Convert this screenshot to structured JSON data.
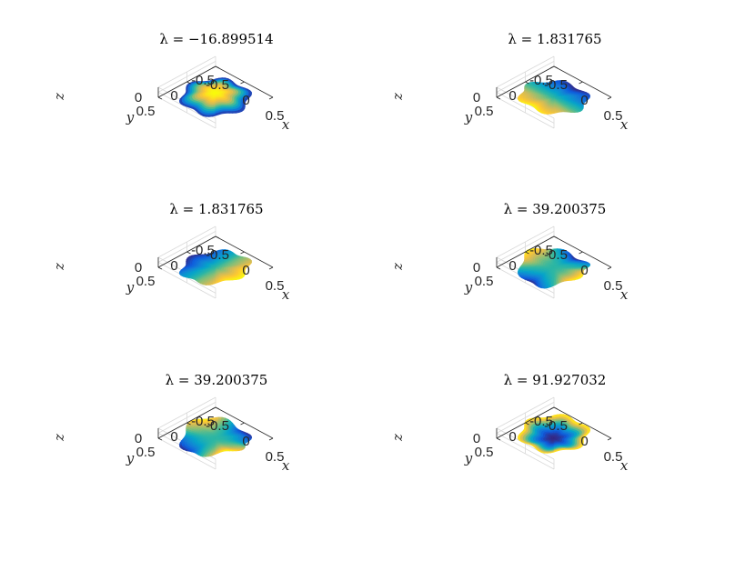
{
  "chart_data": [
    {
      "type": "surface",
      "title": "λ = −16.899514",
      "eigenvalue": -16.899514,
      "xlabel": "x",
      "ylabel": "y",
      "zlabel": "z",
      "xticks": [
        "-0.5",
        "0",
        "0.5"
      ],
      "yticks": [
        "-0.5",
        "0",
        "0.5"
      ],
      "zticks": [
        "0"
      ],
      "xlim": [
        -0.5,
        0.5
      ],
      "ylim": [
        -0.5,
        0.5
      ],
      "colormap": "parula",
      "mode": {
        "n": 0,
        "phase": 0
      },
      "grid": true
    },
    {
      "type": "surface",
      "title": "λ = 1.831765",
      "eigenvalue": 1.831765,
      "xlabel": "x",
      "ylabel": "y",
      "zlabel": "z",
      "xticks": [
        "-0.5",
        "0",
        "0.5"
      ],
      "yticks": [
        "-0.5",
        "0",
        "0.5"
      ],
      "zticks": [
        "0"
      ],
      "xlim": [
        -0.5,
        0.5
      ],
      "ylim": [
        -0.5,
        0.5
      ],
      "colormap": "parula",
      "mode": {
        "n": 1,
        "phase": 90
      },
      "grid": true
    },
    {
      "type": "surface",
      "title": "λ = 1.831765",
      "eigenvalue": 1.831765,
      "xlabel": "x",
      "ylabel": "y",
      "zlabel": "z",
      "xticks": [
        "-0.5",
        "0",
        "0.5"
      ],
      "yticks": [
        "-0.5",
        "0",
        "0.5"
      ],
      "zticks": [
        "0"
      ],
      "xlim": [
        -0.5,
        0.5
      ],
      "ylim": [
        -0.5,
        0.5
      ],
      "colormap": "parula",
      "mode": {
        "n": 1,
        "phase": 0
      },
      "grid": true
    },
    {
      "type": "surface",
      "title": "λ = 39.200375",
      "eigenvalue": 39.200375,
      "xlabel": "x",
      "ylabel": "y",
      "zlabel": "z",
      "xticks": [
        "-0.5",
        "0",
        "0.5"
      ],
      "yticks": [
        "-0.5",
        "0",
        "0.5"
      ],
      "zticks": [
        "0"
      ],
      "xlim": [
        -0.5,
        0.5
      ],
      "ylim": [
        -0.5,
        0.5
      ],
      "colormap": "parula",
      "mode": {
        "n": 2,
        "phase": 0
      },
      "grid": true
    },
    {
      "type": "surface",
      "title": "λ = 39.200375",
      "eigenvalue": 39.200375,
      "xlabel": "x",
      "ylabel": "y",
      "zlabel": "z",
      "xticks": [
        "-0.5",
        "0",
        "0.5"
      ],
      "yticks": [
        "-0.5",
        "0",
        "0.5"
      ],
      "zticks": [
        "0"
      ],
      "xlim": [
        -0.5,
        0.5
      ],
      "ylim": [
        -0.5,
        0.5
      ],
      "colormap": "parula",
      "mode": {
        "n": 2,
        "phase": 45
      },
      "grid": true
    },
    {
      "type": "surface",
      "title": "λ = 91.927032",
      "eigenvalue": 91.927032,
      "xlabel": "x",
      "ylabel": "y",
      "zlabel": "z",
      "xticks": [
        "-0.5",
        "0",
        "0.5"
      ],
      "yticks": [
        "-0.5",
        "0",
        "0.5"
      ],
      "zticks": [
        "0"
      ],
      "xlim": [
        -0.5,
        0.5
      ],
      "ylim": [
        -0.5,
        0.5
      ],
      "colormap": "parula",
      "mode": {
        "n": -1,
        "phase": 0
      },
      "grid": true
    }
  ],
  "colors": {
    "parula": [
      "#352a87",
      "#0f5cdd",
      "#1481d6",
      "#06a4ca",
      "#2eb7a4",
      "#87bf77",
      "#d1bb59",
      "#fec832",
      "#f9fb0e"
    ],
    "box": "#d9d9d9",
    "axis": "#262626"
  }
}
